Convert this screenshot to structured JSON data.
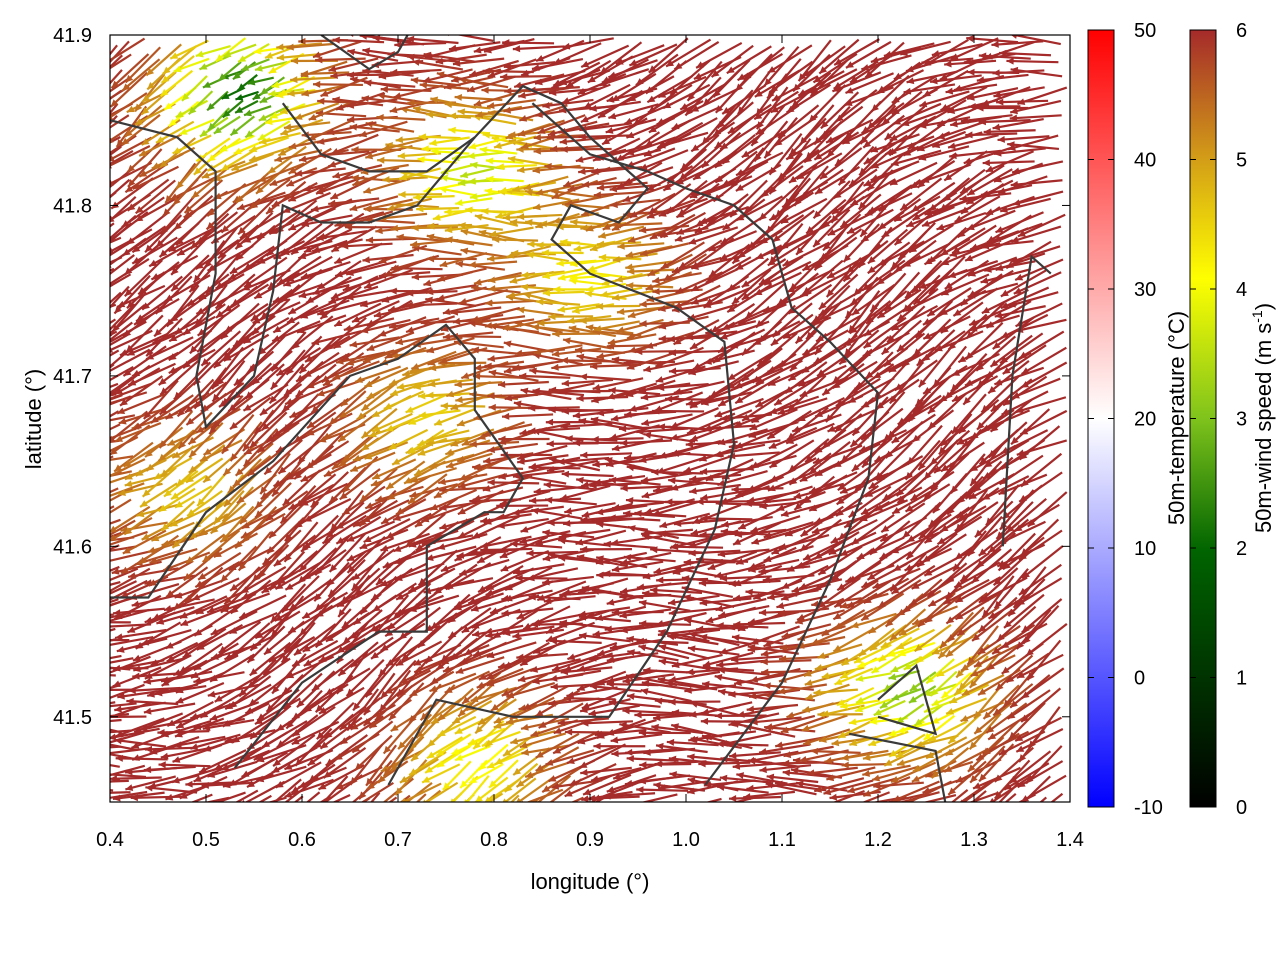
{
  "chart_data": {
    "type": "vector-field",
    "xlabel": "longitude (°)",
    "ylabel": "latitude (°)",
    "xlim": [
      0.4,
      1.4
    ],
    "ylim": [
      41.45,
      41.9
    ],
    "x_ticks": [
      "0.4",
      "0.5",
      "0.6",
      "0.7",
      "0.8",
      "0.9",
      "1.0",
      "1.1",
      "1.2",
      "1.3",
      "1.4"
    ],
    "y_ticks": [
      "41.5",
      "41.6",
      "41.7",
      "41.8",
      "41.9"
    ],
    "temperature_colorbar": {
      "label": "50m-temperature (°C)",
      "range": [
        -10,
        50
      ],
      "ticks": [
        "-10",
        "0",
        "10",
        "20",
        "30",
        "40",
        "50"
      ],
      "colors": [
        "#0000ff",
        "#ffffff",
        "#ff0000"
      ]
    },
    "wind_colorbar": {
      "label_main": "50m-wind speed (m s",
      "label_sup": "-1",
      "label_end": ")",
      "range": [
        0,
        6
      ],
      "ticks": [
        "0",
        "1",
        "2",
        "3",
        "4",
        "5",
        "6"
      ],
      "colors": [
        "#000000",
        "#006400",
        "#7fc31c",
        "#ffff00",
        "#d4a017",
        "#a52a2a"
      ]
    },
    "field_summary": {
      "dominant_direction": "west-northwest",
      "dominant_speed": 6,
      "low_speed_zones": [
        {
          "lon": 0.55,
          "lat": 41.87,
          "speed": 2
        },
        {
          "lon": 0.8,
          "lat": 41.82,
          "speed": 3.5
        },
        {
          "lon": 0.92,
          "lat": 41.76,
          "speed": 4.2
        },
        {
          "lon": 0.75,
          "lat": 41.68,
          "speed": 4.5
        },
        {
          "lon": 0.5,
          "lat": 41.64,
          "speed": 4.6
        },
        {
          "lon": 1.25,
          "lat": 41.52,
          "speed": 3.0
        },
        {
          "lon": 0.8,
          "lat": 41.48,
          "speed": 4.0
        }
      ]
    },
    "contours": [
      [
        [
          0.4,
          41.85
        ],
        [
          0.47,
          41.84
        ],
        [
          0.51,
          41.82
        ],
        [
          0.51,
          41.76
        ],
        [
          0.49,
          41.7
        ],
        [
          0.5,
          41.67
        ],
        [
          0.55,
          41.7
        ],
        [
          0.57,
          41.75
        ],
        [
          0.58,
          41.8
        ],
        [
          0.62,
          41.79
        ],
        [
          0.67,
          41.79
        ],
        [
          0.72,
          41.8
        ],
        [
          0.78,
          41.84
        ],
        [
          0.83,
          41.87
        ],
        [
          0.87,
          41.86
        ],
        [
          0.9,
          41.84
        ],
        [
          0.96,
          41.81
        ],
        [
          0.93,
          41.79
        ],
        [
          0.88,
          41.8
        ],
        [
          0.86,
          41.78
        ],
        [
          0.9,
          41.76
        ],
        [
          0.99,
          41.74
        ],
        [
          1.04,
          41.72
        ],
        [
          1.05,
          41.66
        ],
        [
          1.03,
          41.61
        ],
        [
          0.98,
          41.55
        ],
        [
          0.92,
          41.5
        ],
        [
          0.82,
          41.5
        ],
        [
          0.74,
          41.51
        ],
        [
          0.69,
          41.46
        ]
      ],
      [
        [
          0.4,
          41.57
        ],
        [
          0.44,
          41.57
        ],
        [
          0.5,
          41.62
        ],
        [
          0.57,
          41.65
        ],
        [
          0.65,
          41.7
        ],
        [
          0.7,
          41.71
        ],
        [
          0.75,
          41.73
        ],
        [
          0.78,
          41.71
        ],
        [
          0.78,
          41.68
        ],
        [
          0.83,
          41.64
        ],
        [
          0.81,
          41.62
        ],
        [
          0.79,
          41.62
        ],
        [
          0.73,
          41.6
        ],
        [
          0.73,
          41.55
        ],
        [
          0.68,
          41.55
        ],
        [
          0.6,
          41.52
        ],
        [
          0.53,
          41.47
        ]
      ],
      [
        [
          0.62,
          41.9
        ],
        [
          0.67,
          41.88
        ],
        [
          0.7,
          41.89
        ],
        [
          0.72,
          41.91
        ]
      ],
      [
        [
          0.58,
          41.86
        ],
        [
          0.62,
          41.83
        ],
        [
          0.67,
          41.82
        ],
        [
          0.73,
          41.82
        ],
        [
          0.78,
          41.84
        ]
      ],
      [
        [
          0.84,
          41.86
        ],
        [
          0.88,
          41.84
        ],
        [
          0.9,
          41.83
        ],
        [
          0.96,
          41.82
        ],
        [
          1.0,
          41.81
        ],
        [
          1.05,
          41.8
        ],
        [
          1.09,
          41.78
        ],
        [
          1.11,
          41.74
        ],
        [
          1.15,
          41.72
        ],
        [
          1.2,
          41.69
        ],
        [
          1.19,
          41.64
        ],
        [
          1.15,
          41.58
        ],
        [
          1.1,
          41.52
        ],
        [
          1.02,
          41.46
        ]
      ],
      [
        [
          1.33,
          41.6
        ],
        [
          1.34,
          41.7
        ],
        [
          1.36,
          41.77
        ],
        [
          1.38,
          41.76
        ]
      ],
      [
        [
          1.17,
          41.49
        ],
        [
          1.26,
          41.48
        ],
        [
          1.27,
          41.45
        ]
      ],
      [
        [
          1.2,
          41.51
        ],
        [
          1.24,
          41.53
        ],
        [
          1.26,
          41.49
        ],
        [
          1.2,
          41.5
        ]
      ]
    ]
  }
}
